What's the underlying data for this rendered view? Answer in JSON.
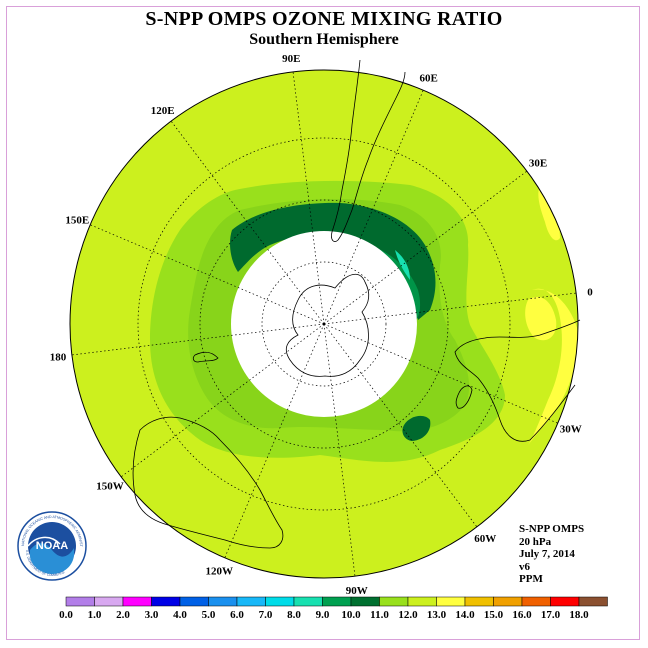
{
  "header": {
    "title": "S-NPP OMPS OZONE MIXING RATIO",
    "subtitle": "Southern Hemisphere"
  },
  "map": {
    "projection": "south-polar-stereographic",
    "longitude_labels": [
      {
        "text": "90W",
        "lon": -90
      },
      {
        "text": "60W",
        "lon": -60
      },
      {
        "text": "30W",
        "lon": -30
      },
      {
        "text": "0",
        "lon": 0
      },
      {
        "text": "30E",
        "lon": 30
      },
      {
        "text": "60E",
        "lon": 60
      },
      {
        "text": "90E",
        "lon": 90
      },
      {
        "text": "120E",
        "lon": 120
      },
      {
        "text": "150E",
        "lon": 150
      },
      {
        "text": "180",
        "lon": 180
      },
      {
        "text": "150W",
        "lon": -150
      },
      {
        "text": "120W",
        "lon": -120
      }
    ],
    "background_color": "#ccf01e",
    "no_data_color": "#ffffff",
    "coastline_color": "#000000",
    "graticule_style": "dotted"
  },
  "info": {
    "instrument": "S-NPP OMPS",
    "level": "20 hPa",
    "date": "July 7, 2014",
    "version": "v6",
    "units": "PPM"
  },
  "logo": {
    "name": "NOAA",
    "ring_text": "NATIONAL OCEANIC AND ATMOSPHERIC ADMINISTRATION",
    "ring_text_bottom": "U.S. DEPARTMENT OF COMMERCE"
  },
  "colorbar": {
    "labels": [
      "0.0",
      "1.0",
      "2.0",
      "3.0",
      "4.0",
      "5.0",
      "6.0",
      "7.0",
      "8.0",
      "9.0",
      "10.0",
      "11.0",
      "12.0",
      "13.0",
      "14.0",
      "15.0",
      "16.0",
      "17.0",
      "18.0"
    ],
    "colors": [
      "#b27ee8",
      "#d8a8f0",
      "#ff00ff",
      "#0000e6",
      "#0060e6",
      "#1a90ee",
      "#18b8f8",
      "#00dce8",
      "#17e0b0",
      "#00a050",
      "#007030",
      "#99e01c",
      "#ccf01e",
      "#ffff40",
      "#f0c000",
      "#f0a000",
      "#f06000",
      "#ff0000",
      "#8b5030"
    ]
  }
}
